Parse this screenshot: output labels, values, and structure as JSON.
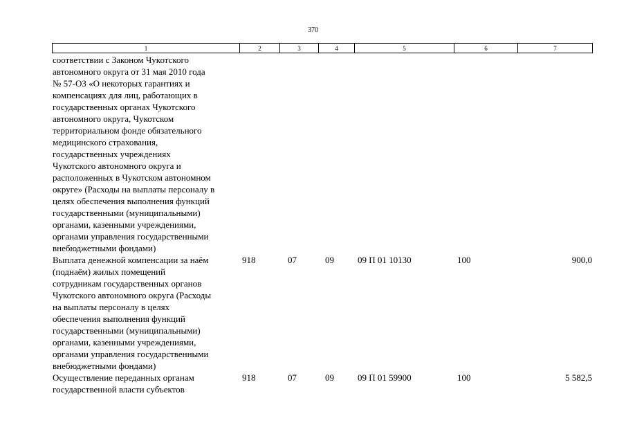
{
  "page_number": "370",
  "column_numbers": [
    "1",
    "2",
    "3",
    "4",
    "5",
    "6",
    "7"
  ],
  "rows": [
    {
      "name_lines": [
        "соответствии с Законом Чукотского",
        "автономного округа от 31 мая 2010 года",
        "№ 57-ОЗ «О некоторых гарантиях и",
        "компенсациях для лиц, работающих в",
        "государственных органах Чукотского",
        "автономного округа, Чукотском",
        "территориальном фонде обязательного",
        "медицинского страхования,",
        "государственных учреждениях",
        "Чукотского автономного округа и",
        "расположенных в Чукотском автономном",
        "округе» (Расходы на выплаты персоналу в",
        "целях обеспечения выполнения функций",
        "государственными (муниципальными)",
        "органами, казенными учреждениями,",
        "органами управления государственными",
        "внебюджетными фондами)"
      ],
      "ministry": "",
      "section": "",
      "subsection": "",
      "target_article": "",
      "expense_type": "",
      "amount": ""
    },
    {
      "name_lines": [
        "Выплата денежной компенсации за наём",
        "(поднаём) жилых помещений",
        "сотрудникам государственных органов",
        "Чукотского автономного округа (Расходы",
        "на выплаты персоналу в целях",
        "обеспечения выполнения функций",
        "государственными (муниципальными)",
        "органами, казенными учреждениями,",
        "органами управления государственными",
        "внебюджетными фондами)"
      ],
      "ministry": "918",
      "section": "07",
      "subsection": "09",
      "target_article": "09 П 01 10130",
      "expense_type": "100",
      "amount": "900,0"
    },
    {
      "name_lines": [
        "Осуществление переданных органам",
        "государственной власти субъектов"
      ],
      "ministry": "918",
      "section": "07",
      "subsection": "09",
      "target_article": "09 П 01 59900",
      "expense_type": "100",
      "amount": "5 582,5"
    }
  ]
}
